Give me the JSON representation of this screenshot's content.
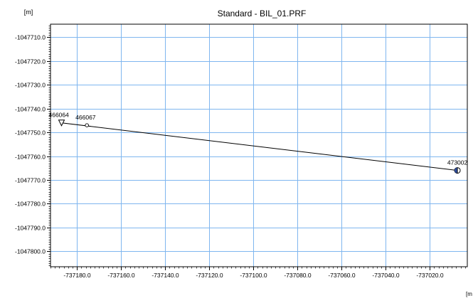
{
  "chart_data": {
    "type": "line",
    "title": "Standard - BIL_01.PRF",
    "ylabel": "[m]",
    "xlabel": "[m",
    "xlim": [
      -737192.0,
      -737003.0
    ],
    "ylim": [
      -1047806.5,
      -1047704.5
    ],
    "x_ticks": [
      -737180.0,
      -737160.0,
      -737140.0,
      -737120.0,
      -737100.0,
      -737080.0,
      -737060.0,
      -737040.0,
      -737020.0
    ],
    "x_tick_labels": [
      "-737180.0",
      "-737160.0",
      "-737140.0",
      "-737120.0",
      "-737100.0",
      "-737080.0",
      "-737060.0",
      "-737040.0",
      "-737020.0"
    ],
    "y_ticks": [
      -1047710.0,
      -1047720.0,
      -1047730.0,
      -1047740.0,
      -1047750.0,
      -1047760.0,
      -1047770.0,
      -1047780.0,
      -1047790.0,
      -1047800.0
    ],
    "y_tick_labels": [
      "-1047710.0",
      "-1047720.0",
      "-1047730.0",
      "-1047740.0",
      "-1047750.0",
      "-1047760.0",
      "-1047770.0",
      "-1047780.0",
      "-1047790.0",
      "-1047800.0"
    ],
    "grid": true,
    "series": [
      {
        "points": [
          {
            "x": -737187.0,
            "y": -1047746.0
          },
          {
            "x": -737007.5,
            "y": -1047766.0
          }
        ]
      }
    ],
    "stations": [
      {
        "label": "466064",
        "x": -737187.0,
        "y": -1047746.0,
        "marker": "triangle-down"
      },
      {
        "label": "466067",
        "x": -737175.5,
        "y": -1047747.0,
        "marker": "circle"
      },
      {
        "label": "473002",
        "x": -737007.5,
        "y": -1047766.0,
        "marker": "half-circle"
      }
    ],
    "colors": {
      "grid": "#7fb6ef",
      "line": "#000000",
      "marker_fill": "#2f4fa0",
      "axis": "#000000"
    }
  }
}
